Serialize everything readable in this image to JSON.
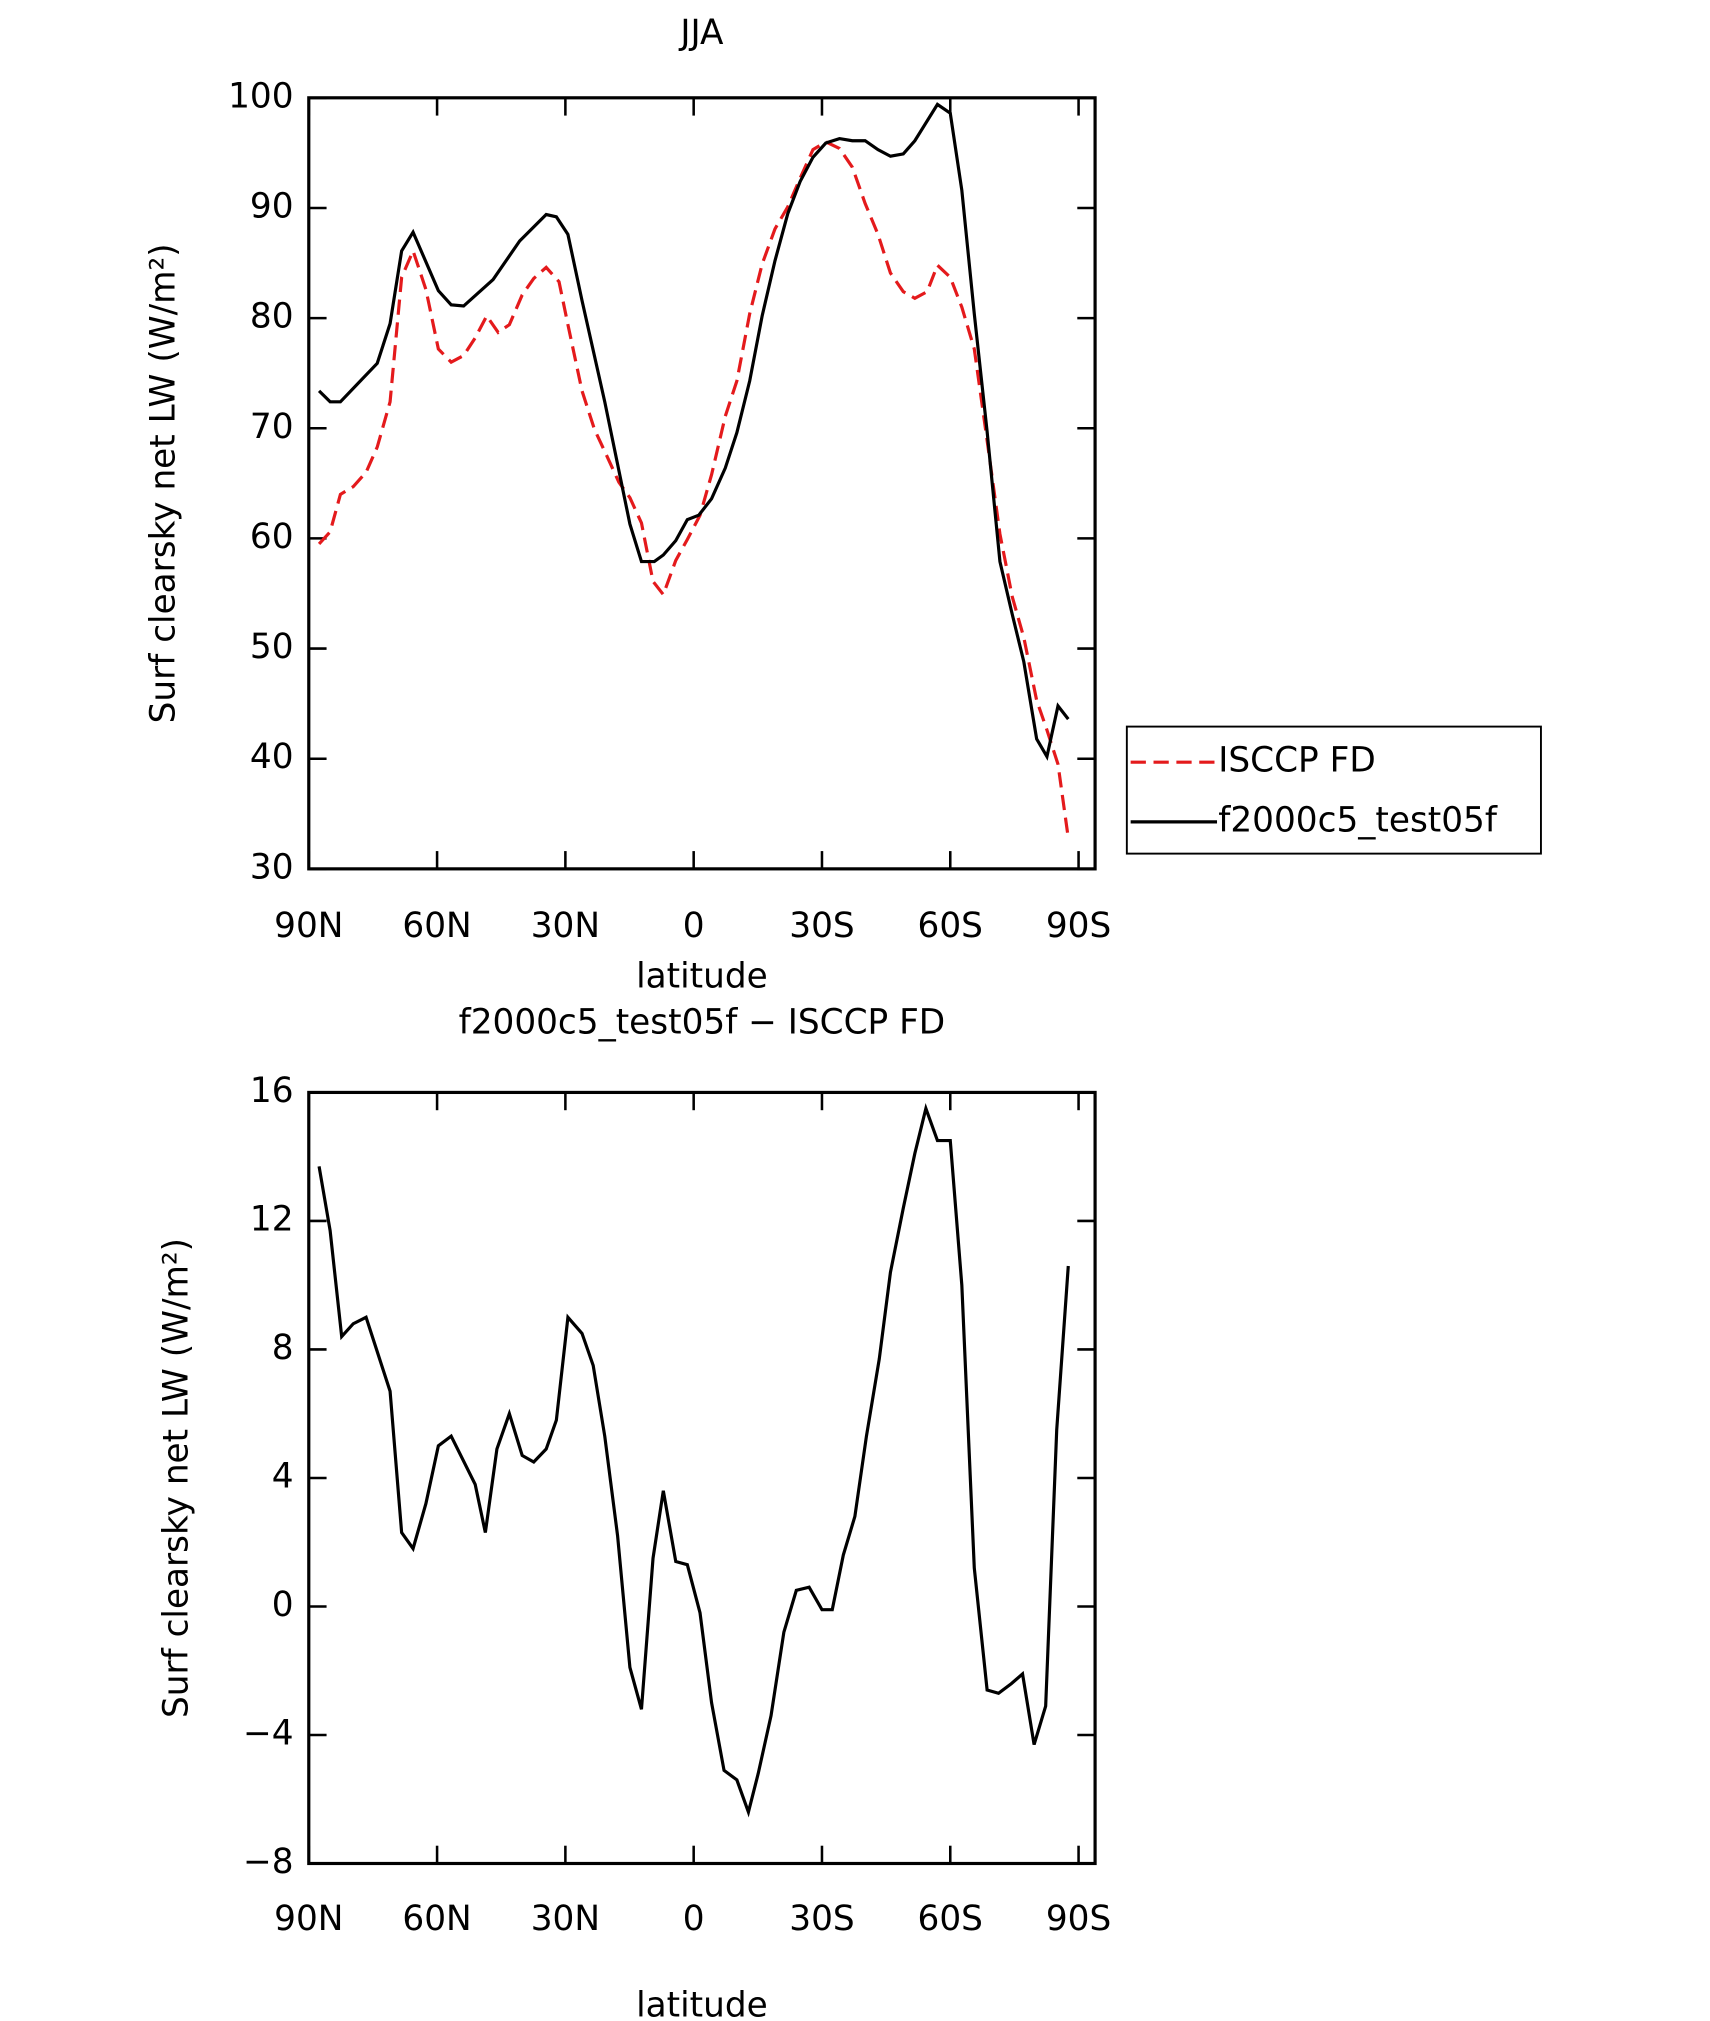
{
  "chart_data": [
    {
      "type": "line",
      "title": "JJA",
      "xlabel": "latitude",
      "ylabel": "Surf clearsky net LW (W/m²)",
      "xlim": [
        90,
        -90
      ],
      "xticks": [
        {
          "value": 90,
          "label": "90N"
        },
        {
          "value": 60,
          "label": "60N"
        },
        {
          "value": 30,
          "label": "30N"
        },
        0,
        {
          "value": -30,
          "label": "30S"
        },
        {
          "value": -60,
          "label": "60S"
        },
        {
          "value": -90,
          "label": "90S"
        }
      ],
      "ylim": [
        30,
        100
      ],
      "yticks": [
        30,
        40,
        50,
        60,
        70,
        80,
        90,
        100
      ],
      "legend": "right",
      "series": [
        {
          "name": "ISCCP FD",
          "color": "#e41a1c",
          "line_style": "dashed",
          "x": [
            87.6,
            85,
            82.6,
            79.6,
            76.6,
            74,
            71,
            68.3,
            65.6,
            62.6,
            59.7,
            56.7,
            53.8,
            51.1,
            48.4,
            45.7,
            43.1,
            40.1,
            37.4,
            34.5,
            31.5,
            29.4,
            26.1,
            23.2,
            20.2,
            17.5,
            14.9,
            12.2,
            9.5,
            7.1,
            4.2,
            1.5,
            -1.5,
            -4.2,
            -7.4,
            -10.1,
            -13.1,
            -16,
            -19,
            -22,
            -24.9,
            -27.9,
            -30.9,
            -34.1,
            -37.1,
            -40.1,
            -43.1,
            -46,
            -49,
            -51.7,
            -54.6,
            -57,
            -60,
            -62.7,
            -65.6,
            -68.6,
            -71.6,
            -74.5,
            -77.2,
            -80.2,
            -82.6,
            -85.2,
            -87.6
          ],
          "values": [
            59.5,
            60.6,
            64.0,
            64.7,
            66.0,
            68.3,
            72.4,
            83.7,
            86.1,
            82.6,
            77.2,
            76.0,
            76.6,
            78.2,
            80.2,
            78.7,
            79.4,
            82.1,
            83.6,
            84.6,
            83.3,
            79.4,
            73.4,
            69.9,
            67.4,
            65.1,
            63.7,
            61.4,
            56.1,
            54.9,
            58.0,
            59.9,
            62.1,
            65.8,
            71.1,
            74.3,
            80.4,
            84.9,
            88.1,
            90.1,
            92.7,
            95.3,
            96.0,
            95.4,
            93.7,
            90.4,
            87.6,
            84.1,
            82.4,
            81.8,
            82.4,
            84.8,
            83.7,
            81.0,
            77.2,
            68.9,
            60.4,
            54.7,
            51.0,
            45.3,
            42.6,
            39.5,
            32.8
          ]
        },
        {
          "name": "f2000c5_test05f",
          "color": "#000000",
          "line_style": "solid",
          "x": [
            87.6,
            85,
            82.6,
            74,
            71,
            68.3,
            65.6,
            59.7,
            56.7,
            53.8,
            46.9,
            40.7,
            34.5,
            32.1,
            29.4,
            26.1,
            20.8,
            14.9,
            12.2,
            9.2,
            7.1,
            4.2,
            1.5,
            -1.2,
            -4.2,
            -7.4,
            -10.1,
            -13.1,
            -16,
            -19,
            -22,
            -24.9,
            -27.9,
            -30.9,
            -34.1,
            -37.1,
            -40.1,
            -43.1,
            -46,
            -49,
            -51.7,
            -57,
            -60,
            -62.7,
            -65.6,
            -68.6,
            -71.6,
            -74.5,
            -77.2,
            -80.2,
            -82.6,
            -85.2,
            -87.6
          ],
          "values": [
            73.4,
            72.4,
            72.4,
            75.9,
            79.5,
            86.1,
            87.8,
            82.5,
            81.2,
            81.1,
            83.5,
            87.0,
            89.4,
            89.2,
            87.6,
            81.6,
            72.4,
            61.3,
            57.9,
            57.9,
            58.5,
            59.8,
            61.7,
            62.1,
            63.6,
            66.4,
            69.6,
            74.3,
            80.2,
            85.2,
            89.5,
            92.4,
            94.6,
            95.9,
            96.3,
            96.1,
            96.1,
            95.3,
            94.7,
            94.9,
            96.1,
            99.4,
            98.6,
            91.6,
            80.4,
            69.7,
            57.9,
            53.1,
            48.8,
            41.8,
            40.2,
            44.8,
            43.6
          ]
        }
      ]
    },
    {
      "type": "line",
      "title": "f2000c5_test05f − ISCCP FD",
      "xlabel": "latitude",
      "ylabel": "Surf clearsky net LW (W/m²)",
      "xlim": [
        90,
        -90
      ],
      "xticks": [
        {
          "value": 90,
          "label": "90N"
        },
        {
          "value": 60,
          "label": "60N"
        },
        {
          "value": 30,
          "label": "30N"
        },
        0,
        {
          "value": -30,
          "label": "30S"
        },
        {
          "value": -60,
          "label": "60S"
        },
        {
          "value": -90,
          "label": "90S"
        }
      ],
      "ylim": [
        -8,
        16
      ],
      "yticks": [
        {
          "value": -8,
          "label": "−8"
        },
        {
          "value": -4,
          "label": "−4"
        },
        0,
        4,
        8,
        12,
        16
      ],
      "series": [
        {
          "color": "#000000",
          "line_style": "solid",
          "x": [
            87.6,
            85,
            82.3,
            79.6,
            76.6,
            71,
            68.3,
            65.6,
            62.6,
            59.7,
            56.7,
            51.1,
            48.7,
            46,
            43.1,
            40.1,
            37.4,
            34.5,
            32.1,
            29.4,
            26.1,
            23.5,
            20.8,
            17.8,
            14.9,
            12.2,
            9.5,
            7.1,
            4.2,
            1.5,
            -1.5,
            -4.2,
            -7.1,
            -10.1,
            -12.8,
            -15.1,
            -18.1,
            -21.1,
            -24,
            -27,
            -30,
            -32.4,
            -35,
            -37.7,
            -40.4,
            -43.4,
            -46,
            -49,
            -51.7,
            -54.3,
            -57,
            -60,
            -62.7,
            -65.6,
            -68.6,
            -71.3,
            -74.3,
            -76.9,
            -79.6,
            -82.3,
            -84.9,
            -87.6
          ],
          "values": [
            13.7,
            11.7,
            8.4,
            8.8,
            9.0,
            6.7,
            2.3,
            1.8,
            3.2,
            5.0,
            5.3,
            3.8,
            2.3,
            4.9,
            6.0,
            4.7,
            4.5,
            4.9,
            5.8,
            9.0,
            8.5,
            7.5,
            5.3,
            2.2,
            -1.9,
            -3.2,
            1.5,
            3.6,
            1.4,
            1.3,
            -0.2,
            -3.0,
            -5.1,
            -5.4,
            -6.4,
            -5.2,
            -3.4,
            -0.8,
            0.5,
            0.6,
            -0.1,
            -0.1,
            1.6,
            2.8,
            5.3,
            7.7,
            10.4,
            12.4,
            14.1,
            15.5,
            14.5,
            14.5,
            10.0,
            1.2,
            -2.6,
            -2.7,
            -2.4,
            -2.1,
            -4.3,
            -3.1,
            5.5,
            10.6
          ]
        }
      ]
    }
  ]
}
